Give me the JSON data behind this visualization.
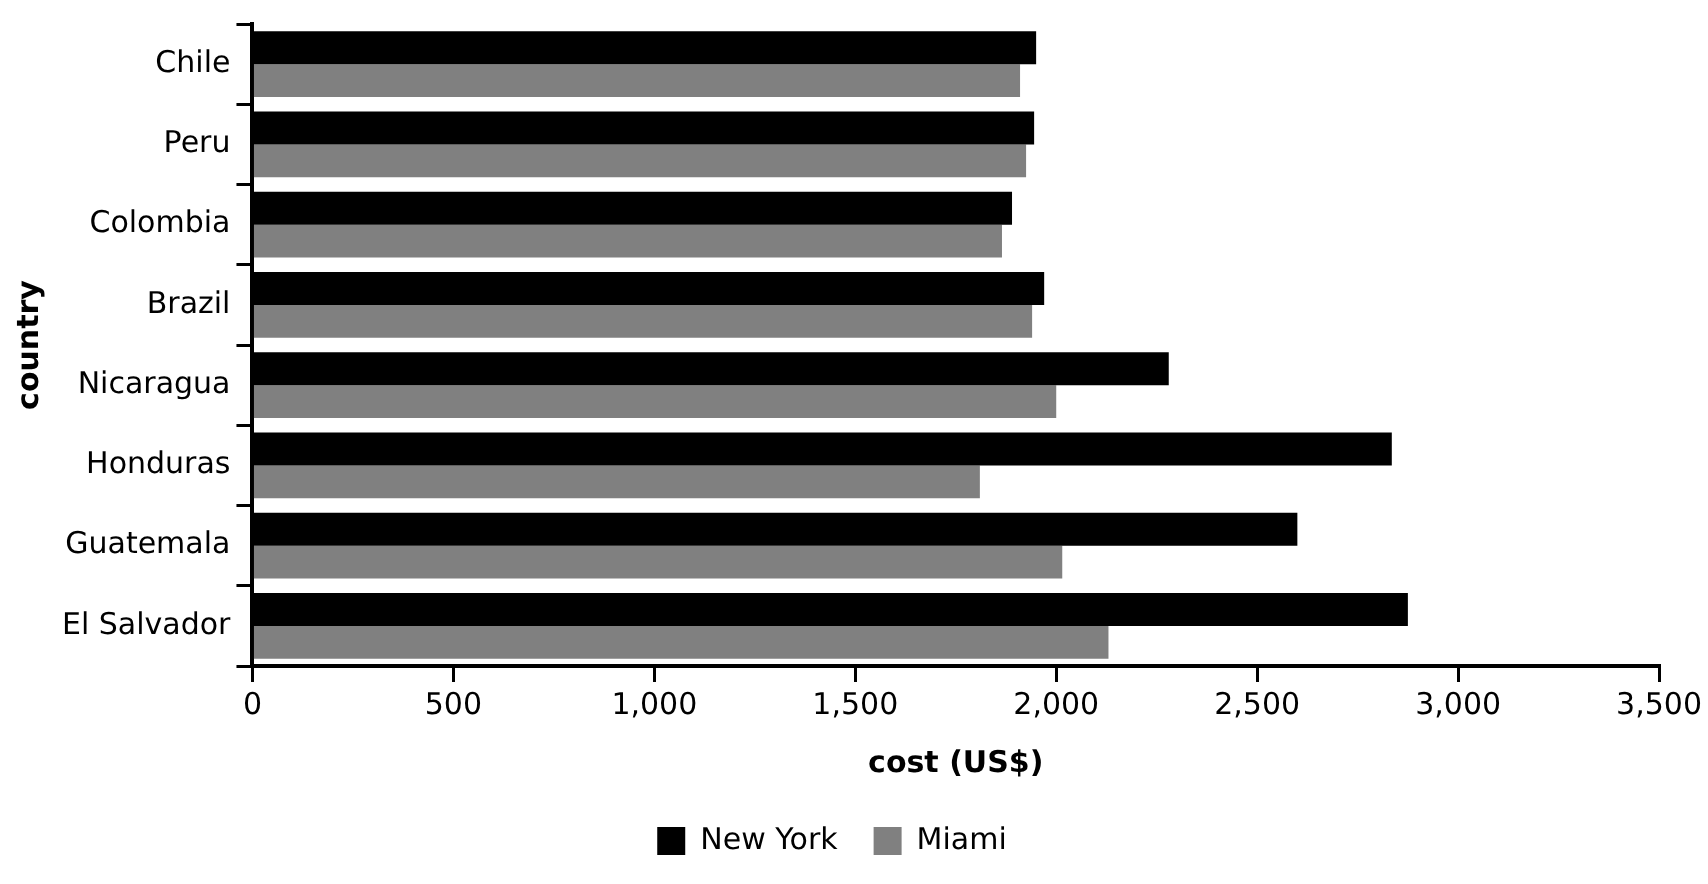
{
  "chart_data": {
    "type": "bar",
    "orientation": "horizontal",
    "xlabel": "cost (US$)",
    "ylabel": "country",
    "categories": [
      "Chile",
      "Peru",
      "Colombia",
      "Brazil",
      "Nicaragua",
      "Honduras",
      "Guatemala",
      "El Salvador"
    ],
    "series": [
      {
        "name": "New York",
        "color": "#000000",
        "values": [
          1950,
          1945,
          1890,
          1970,
          2280,
          2835,
          2600,
          2875
        ]
      },
      {
        "name": "Miami",
        "color": "#808080",
        "values": [
          1910,
          1925,
          1865,
          1940,
          2000,
          1810,
          2015,
          2130
        ]
      }
    ],
    "xlim": [
      0,
      3500
    ],
    "xticks": [
      {
        "value": 0,
        "label": "0"
      },
      {
        "value": 500,
        "label": "500"
      },
      {
        "value": 1000,
        "label": "1,000"
      },
      {
        "value": 1500,
        "label": "1,500"
      },
      {
        "value": 2000,
        "label": "2,000"
      },
      {
        "value": 2500,
        "label": "2,500"
      },
      {
        "value": 3000,
        "label": "3,000"
      },
      {
        "value": 3500,
        "label": "3,500"
      }
    ],
    "grid": false,
    "legend": "bottom"
  }
}
